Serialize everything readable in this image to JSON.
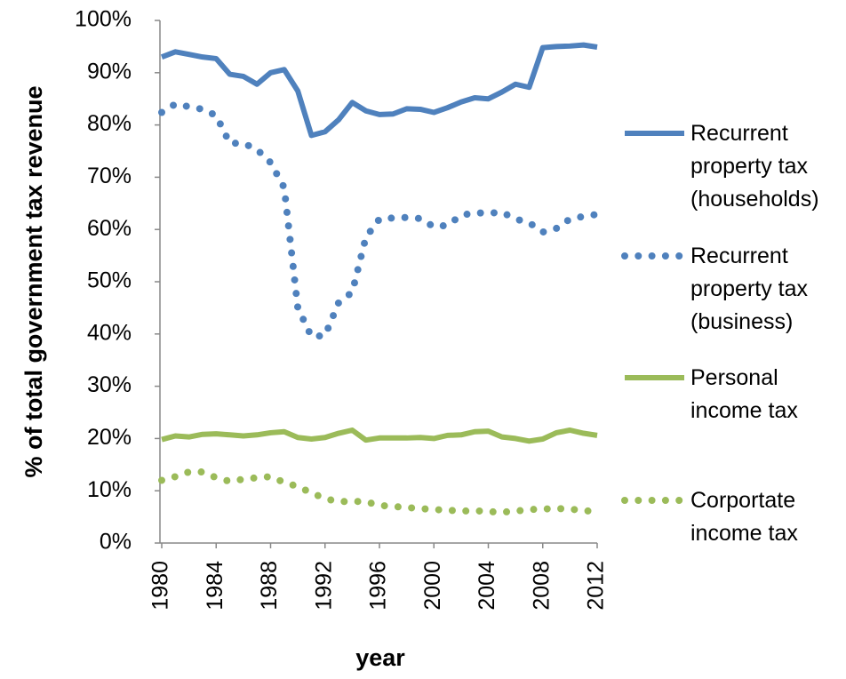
{
  "chart_data": {
    "type": "line",
    "x_label": "year",
    "y_label": "% of total government tax revenue",
    "x": [
      1980,
      1981,
      1982,
      1983,
      1984,
      1985,
      1986,
      1987,
      1988,
      1989,
      1990,
      1991,
      1992,
      1993,
      1994,
      1995,
      1996,
      1997,
      1998,
      1999,
      2000,
      2001,
      2002,
      2003,
      2004,
      2005,
      2006,
      2007,
      2008,
      2009,
      2010,
      2011,
      2012
    ],
    "xlim": [
      1980,
      2012
    ],
    "xticks": [
      1980,
      1984,
      1988,
      1992,
      1996,
      2000,
      2004,
      2008,
      2012
    ],
    "ylim": [
      0,
      100
    ],
    "yticks": [
      {
        "value": 0,
        "label": "0%"
      },
      {
        "value": 10,
        "label": "10%"
      },
      {
        "value": 20,
        "label": "20%"
      },
      {
        "value": 30,
        "label": "30%"
      },
      {
        "value": 40,
        "label": "40%"
      },
      {
        "value": 50,
        "label": "50%"
      },
      {
        "value": 60,
        "label": "60%"
      },
      {
        "value": 70,
        "label": "70%"
      },
      {
        "value": 80,
        "label": "80%"
      },
      {
        "value": 90,
        "label": "90%"
      },
      {
        "value": 100,
        "label": "100%"
      }
    ],
    "legend": "right",
    "series": [
      {
        "name": "Recurrent property tax (households)",
        "color": "#4f81bd",
        "style": "solid",
        "values": [
          93,
          94,
          93.5,
          93,
          92.7,
          89.7,
          89.3,
          87.8,
          90,
          90.6,
          86.5,
          78,
          78.7,
          81,
          84.3,
          82.7,
          82,
          82.1,
          83.1,
          83,
          82.4,
          83.3,
          84.4,
          85.2,
          85,
          86.3,
          87.8,
          87.2,
          94.8,
          95,
          95.1,
          95.3,
          94.9
        ]
      },
      {
        "name": "Recurrent property tax (business)",
        "color": "#4f81bd",
        "style": "dotted",
        "values": [
          82.4,
          84,
          83.5,
          83,
          81.8,
          76.5,
          76.5,
          75.3,
          72.8,
          68,
          45,
          39.5,
          39.7,
          46,
          48,
          58.5,
          62,
          62.2,
          62.3,
          62.1,
          60.5,
          60.8,
          62.7,
          63.2,
          63.1,
          63.3,
          62,
          61.3,
          59.5,
          60.2,
          62,
          62.5,
          62.9
        ]
      },
      {
        "name": "Personal income tax",
        "color": "#9bbb59",
        "style": "solid",
        "values": [
          19.8,
          20.5,
          20.3,
          20.8,
          20.9,
          20.7,
          20.5,
          20.7,
          21.1,
          21.3,
          20.2,
          19.9,
          20.2,
          21,
          21.6,
          19.7,
          20.1,
          20.1,
          20.1,
          20.2,
          20,
          20.6,
          20.7,
          21.3,
          21.4,
          20.3,
          20,
          19.5,
          19.9,
          21.1,
          21.6,
          21,
          20.6
        ]
      },
      {
        "name": "Corportate income tax",
        "color": "#9bbb59",
        "style": "dotted",
        "values": [
          12,
          12.7,
          13.6,
          13.6,
          12.5,
          11.8,
          12.2,
          12.5,
          12.7,
          11.6,
          10.8,
          9.6,
          8.5,
          7.9,
          8,
          7.9,
          7.2,
          7,
          6.8,
          6.6,
          6.4,
          6.3,
          6.1,
          6.2,
          6,
          5.9,
          6.1,
          6.4,
          6.5,
          6.6,
          6.5,
          6.2,
          6
        ]
      }
    ]
  }
}
